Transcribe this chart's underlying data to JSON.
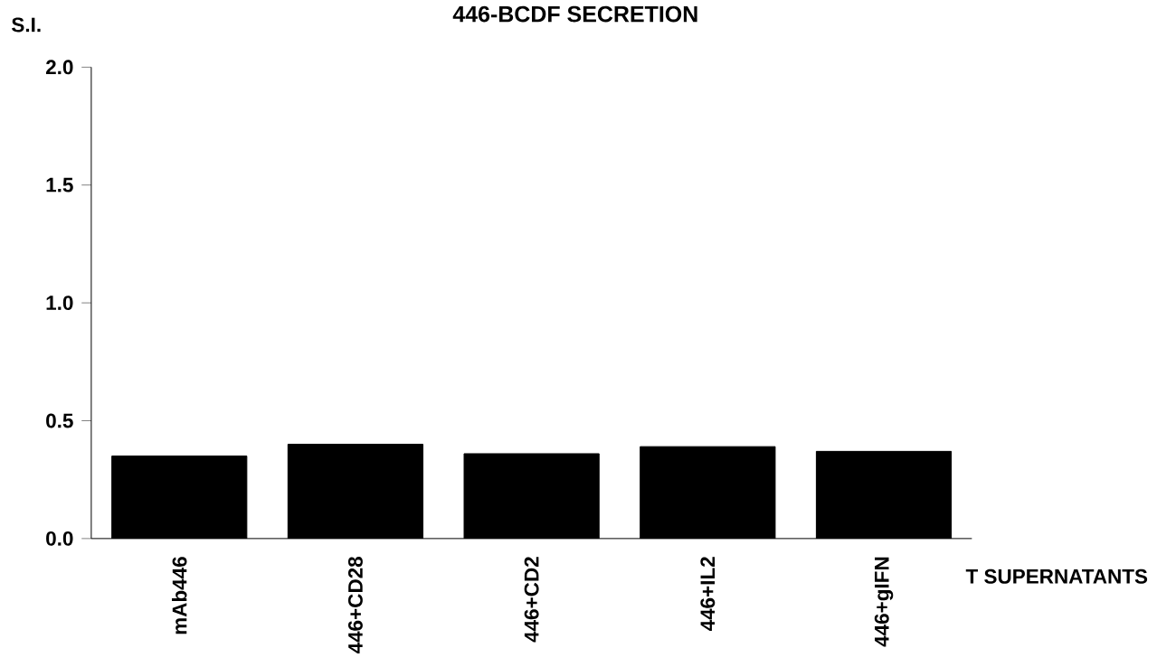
{
  "chart_data": {
    "type": "bar",
    "title": "446-BCDF  SECRETION",
    "ylabel": "S.I.",
    "xlabel": "T  SUPERNATANTS",
    "categories": [
      "mAb446",
      "446+CD28",
      "446+CD2",
      "446+IL2",
      "446+gIFN"
    ],
    "values": [
      0.35,
      0.4,
      0.36,
      0.39,
      0.37
    ],
    "color": "#000000",
    "ylim": [
      0,
      2.0
    ],
    "yticks": [
      {
        "value": 0,
        "label": "0.0"
      },
      {
        "value": 0.5,
        "label": "0.5"
      },
      {
        "value": 1.0,
        "label": "1.0"
      },
      {
        "value": 1.5,
        "label": "1.5"
      },
      {
        "value": 2.0,
        "label": "2.0"
      }
    ]
  }
}
